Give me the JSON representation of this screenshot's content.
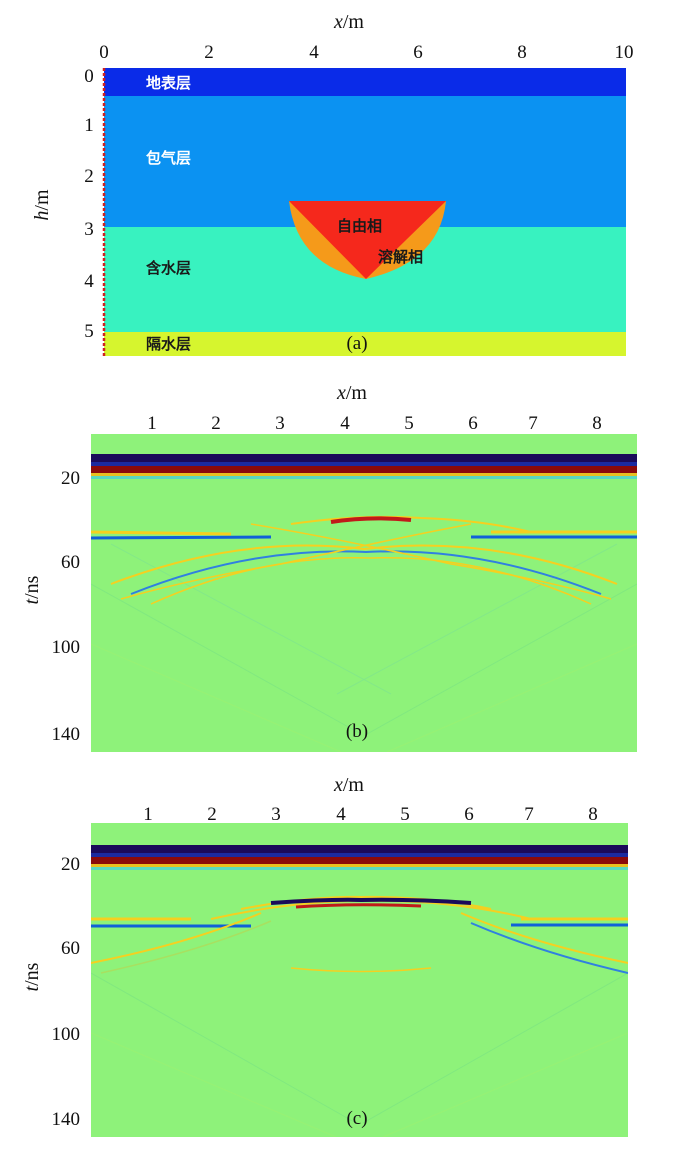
{
  "colors": {
    "surface": "#0a2be8",
    "vadose": "#0b92f2",
    "aquifer": "#38f2c0",
    "aquitard": "#d6f52e",
    "free_phase": "#f5281c",
    "dissolved_phase": "#f59a1a",
    "background": "#8ef27a",
    "band_dark": "#1a0a5a",
    "band_red": "#8a0a0a",
    "positive": "#f5d020",
    "negative": "#1060d8"
  },
  "panel_a": {
    "x_axis_label_italic": "x",
    "x_axis_label_unit": "/m",
    "x_ticks": [
      "0",
      "2",
      "4",
      "6",
      "8",
      "10"
    ],
    "y_axis_label_italic": "h",
    "y_axis_label_unit": "/m",
    "y_ticks": [
      "0",
      "1",
      "2",
      "3",
      "4",
      "5"
    ],
    "layers": {
      "surface": "地表层",
      "vadose": "包气层",
      "aquifer": "含水层",
      "aquitard": "隔水层",
      "free_phase": "自由相",
      "dissolved_phase": "溶解相"
    },
    "caption": "(a)"
  },
  "panel_b": {
    "x_axis_label_italic": "x",
    "x_axis_label_unit": "/m",
    "x_ticks": [
      "1",
      "2",
      "3",
      "4",
      "5",
      "6",
      "7",
      "8"
    ],
    "y_axis_label_italic": "t",
    "y_axis_label_unit": "/ns",
    "y_ticks": [
      "20",
      "60",
      "100",
      "140"
    ],
    "caption": "(b)"
  },
  "panel_c": {
    "x_axis_label_italic": "x",
    "x_axis_label_unit": "/m",
    "x_ticks": [
      "1",
      "2",
      "3",
      "4",
      "5",
      "6",
      "7",
      "8"
    ],
    "y_axis_label_italic": "t",
    "y_axis_label_unit": "/ns",
    "y_ticks": [
      "20",
      "60",
      "100",
      "140"
    ],
    "caption": "(c)"
  }
}
